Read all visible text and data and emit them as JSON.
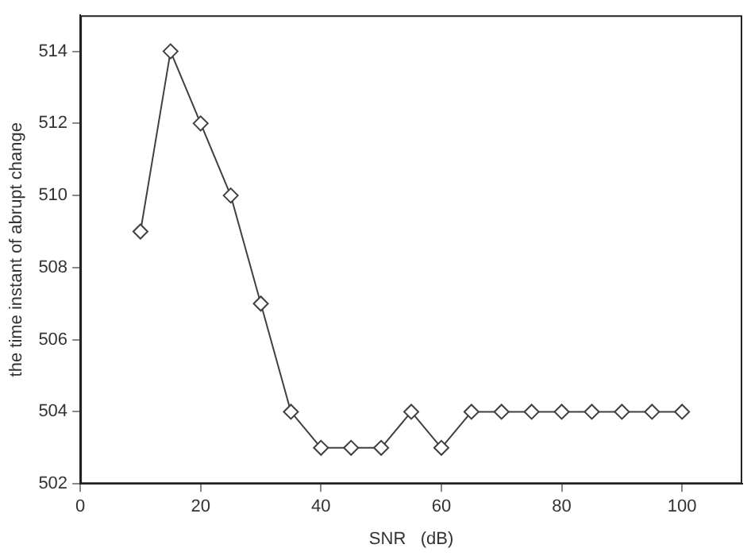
{
  "chart_data": {
    "type": "line",
    "xlabel": "SNR   (dB)",
    "ylabel": "the time instant of abrupt change",
    "x": [
      10,
      15,
      20,
      25,
      30,
      35,
      40,
      45,
      50,
      55,
      60,
      65,
      70,
      75,
      80,
      85,
      90,
      95,
      100
    ],
    "series": [
      {
        "color": "#404040",
        "values": [
          509,
          514,
          512,
          510,
          507,
          504,
          503,
          503,
          503,
          504,
          503,
          504,
          504,
          504,
          504,
          504,
          504,
          504,
          504
        ]
      }
    ],
    "xlim": [
      0,
      110
    ],
    "xticks": [
      0,
      20,
      40,
      60,
      80,
      100
    ],
    "ylim": [
      502,
      515
    ],
    "yticks": [
      502,
      504,
      506,
      508,
      510,
      512,
      514
    ],
    "grid": false,
    "legend": false,
    "marker": "diamond",
    "line_style": "solid"
  }
}
